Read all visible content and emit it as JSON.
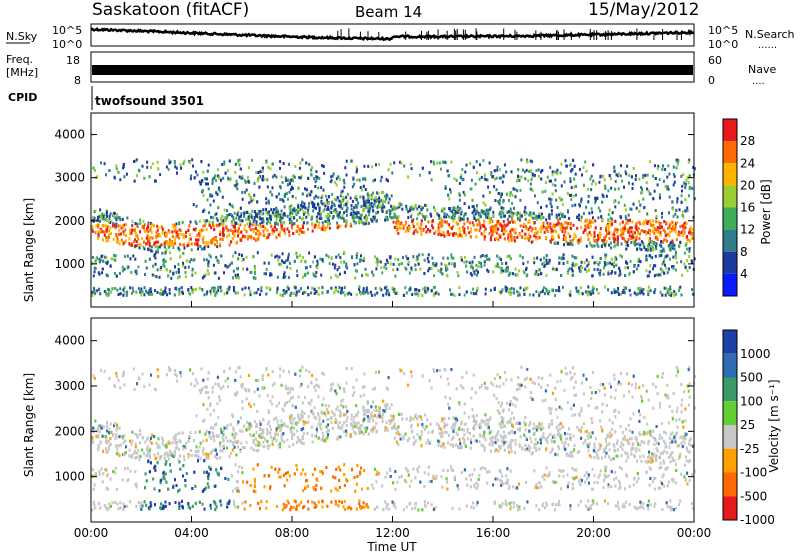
{
  "header": {
    "site": "Saskatoon (fitACF)",
    "beam": "Beam 14",
    "date": "15/May/2012"
  },
  "strips": {
    "nsky_label": "N.Sky",
    "nsearch_label": "N.Search",
    "nsearch_dots": "......",
    "freq_label_1": "Freq.",
    "freq_label_2": "[MHz]",
    "nave_label": "Nave",
    "nave_dots": "....",
    "cpid_label": "CPID",
    "cpid_value": "twofsound 3501",
    "left_top_tick_top": "10^5",
    "left_top_tick_bottom": "10^0",
    "right_top_tick_top": "10^5",
    "right_top_tick_bottom": "10^0",
    "freq_tick_top": "18",
    "freq_tick_bottom": "8",
    "nave_tick_top": "60",
    "nave_tick_bottom": "0"
  },
  "chart_data": [
    {
      "type": "heatmap",
      "panel": "power",
      "ylabel": "Slant Range [km]",
      "ylim": [
        0,
        4500
      ],
      "yticks": [
        1000,
        2000,
        3000,
        4000
      ],
      "xlim_hours": [
        0,
        24
      ],
      "xticks": [
        "00:00",
        "04:00",
        "08:00",
        "12:00",
        "16:00",
        "20:00",
        "00:00"
      ],
      "colorbar": {
        "label": "Power [dB]",
        "ticks": [
          "28",
          "24",
          "20",
          "16",
          "12",
          "8",
          "4"
        ],
        "colors": [
          "#e41a1c",
          "#ff6a00",
          "#ffb300",
          "#9acd32",
          "#3fae5a",
          "#2e7d8a",
          "#1f3a9e",
          "#0a1aff"
        ]
      },
      "bands": [
        {
          "t_start": 0.0,
          "t_end": 24.0,
          "range_center": 2000,
          "note": "main scatter band"
        }
      ]
    },
    {
      "type": "heatmap",
      "panel": "velocity",
      "ylabel": "Slant Range [km]",
      "ylim": [
        0,
        4500
      ],
      "yticks": [
        1000,
        2000,
        3000,
        4000
      ],
      "xlim_hours": [
        0,
        24
      ],
      "xticks": [
        "00:00",
        "04:00",
        "08:00",
        "12:00",
        "16:00",
        "20:00",
        "00:00"
      ],
      "colorbar": {
        "label": "Velocity [m s⁻¹]",
        "ticks": [
          "1000",
          "500",
          "100",
          "25",
          "-25",
          "-100",
          "-500",
          "-1000"
        ],
        "colors": [
          "#1d3fa8",
          "#2f6db5",
          "#3a9a6a",
          "#66cc33",
          "#c8c8c8",
          "#ff9f00",
          "#ff6a00",
          "#e41a1c"
        ]
      }
    }
  ],
  "xaxis_label": "Time UT"
}
